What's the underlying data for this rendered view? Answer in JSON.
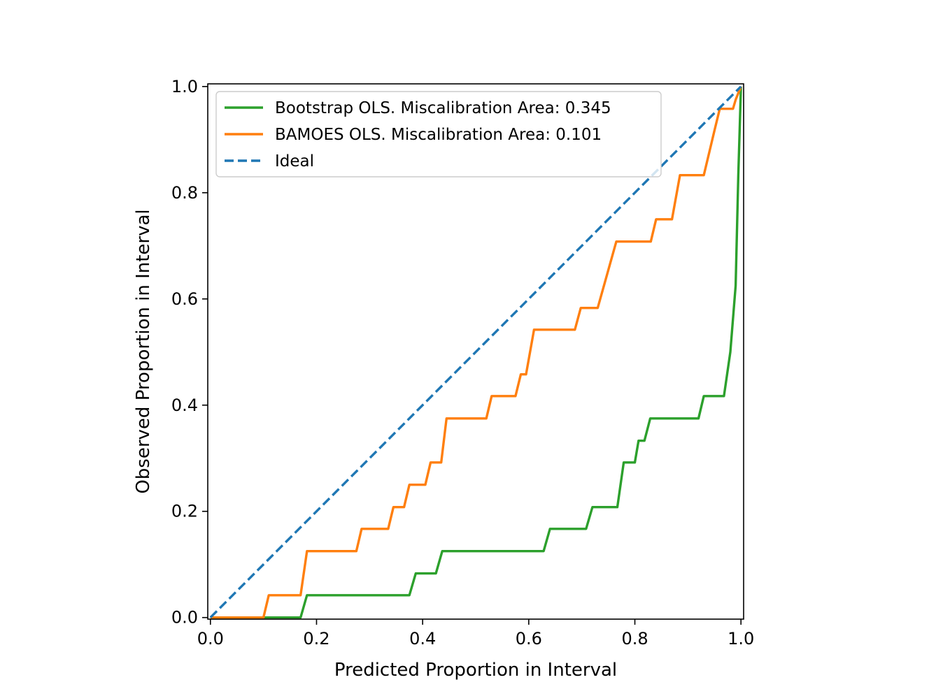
{
  "chart_data": {
    "type": "line",
    "xlabel": "Predicted Proportion in Interval",
    "ylabel": "Observed Proportion in Interval",
    "xlim": [
      -0.005,
      1.005
    ],
    "ylim": [
      -0.003,
      1.005
    ],
    "xticks": [
      "0.0",
      "0.2",
      "0.4",
      "0.6",
      "0.8",
      "1.0"
    ],
    "yticks": [
      "0.0",
      "0.2",
      "0.4",
      "0.6",
      "0.8",
      "1.0"
    ],
    "grid": false,
    "legend_position": "top-left",
    "series": [
      {
        "name": "Bootstrap OLS. Miscalibration Area: 0.345",
        "color": "#2ca02c",
        "style": "solid",
        "x": [
          0.0,
          0.17,
          0.182,
          0.375,
          0.387,
          0.425,
          0.437,
          0.628,
          0.64,
          0.708,
          0.72,
          0.767,
          0.779,
          0.8,
          0.807,
          0.818,
          0.829,
          0.92,
          0.93,
          0.968,
          0.98,
          0.99,
          0.995,
          1.0
        ],
        "y": [
          0.0,
          0.0,
          0.042,
          0.042,
          0.083,
          0.083,
          0.125,
          0.125,
          0.167,
          0.167,
          0.208,
          0.208,
          0.292,
          0.292,
          0.333,
          0.333,
          0.375,
          0.375,
          0.417,
          0.417,
          0.5,
          0.625,
          0.833,
          1.0
        ]
      },
      {
        "name": "BAMOES OLS. Miscalibration Area: 0.101",
        "color": "#ff7f0e",
        "style": "solid",
        "x": [
          0.0,
          0.1,
          0.11,
          0.17,
          0.182,
          0.275,
          0.285,
          0.335,
          0.345,
          0.365,
          0.375,
          0.405,
          0.415,
          0.435,
          0.445,
          0.52,
          0.53,
          0.575,
          0.585,
          0.595,
          0.61,
          0.687,
          0.698,
          0.73,
          0.765,
          0.83,
          0.84,
          0.87,
          0.885,
          0.93,
          0.95,
          0.96,
          0.985,
          0.99,
          1.0
        ],
        "y": [
          0.0,
          0.0,
          0.042,
          0.042,
          0.125,
          0.125,
          0.167,
          0.167,
          0.208,
          0.208,
          0.25,
          0.25,
          0.292,
          0.292,
          0.375,
          0.375,
          0.417,
          0.417,
          0.458,
          0.458,
          0.542,
          0.542,
          0.583,
          0.583,
          0.708,
          0.708,
          0.75,
          0.75,
          0.833,
          0.833,
          0.917,
          0.958,
          0.958,
          0.975,
          1.0
        ]
      },
      {
        "name": "Ideal",
        "color": "#1f77b4",
        "style": "dashed",
        "x": [
          0.0,
          1.0
        ],
        "y": [
          0.0,
          1.0
        ]
      }
    ]
  }
}
